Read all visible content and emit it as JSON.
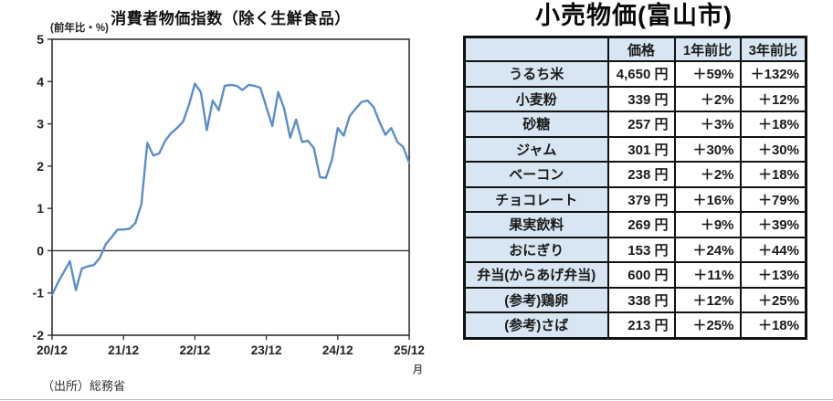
{
  "chart": {
    "title": "消費者物価指数（除く生鮮食品）",
    "unit_label": "(前年比・%)",
    "x_axis_suffix": "月",
    "source": "（出所）総務省",
    "line_color": "#5b8fc9",
    "axis_color": "#333333"
  },
  "chart_data": [
    {
      "type": "line",
      "title": "消費者物価指数（除く生鮮食品）",
      "ylabel": "(前年比・%)",
      "xlabel": "月",
      "ylim": [
        -2,
        5
      ],
      "yticks": [
        5,
        4,
        3,
        2,
        1,
        0,
        -1,
        -2
      ],
      "x_tick_labels": [
        "20/12",
        "21/12",
        "22/12",
        "23/12",
        "24/12",
        "25/12"
      ],
      "x_tick_positions_months": [
        0,
        12,
        24,
        36,
        48,
        60
      ],
      "grid": false,
      "zero_line": true,
      "legend": "none",
      "series": [
        {
          "name": "消費者物価指数（除く生鮮食品）前年比",
          "x_start_month": "20/12",
          "x_step_months": 1,
          "values": [
            -1.05,
            -0.75,
            -0.5,
            -0.25,
            -0.93,
            -0.42,
            -0.37,
            -0.34,
            -0.18,
            0.15,
            0.32,
            0.5,
            0.5,
            0.52,
            0.65,
            1.1,
            2.55,
            2.25,
            2.3,
            2.6,
            2.78,
            2.9,
            3.05,
            3.45,
            3.95,
            3.75,
            2.85,
            3.55,
            3.32,
            3.9,
            3.92,
            3.9,
            3.8,
            3.92,
            3.9,
            3.85,
            3.4,
            2.95,
            3.75,
            3.36,
            2.67,
            3.1,
            2.57,
            2.6,
            2.42,
            1.74,
            1.72,
            2.14,
            2.9,
            2.72,
            3.18,
            3.36,
            3.52,
            3.55,
            3.4,
            3.05,
            2.74,
            2.9,
            2.57,
            2.45,
            2.08
          ]
        }
      ]
    },
    {
      "type": "table",
      "title": "小売物価(富山市)",
      "columns": [
        "",
        "価格",
        "1年前比",
        "3年前比"
      ],
      "rows": [
        [
          "うるち米",
          "4,650 円",
          "＋59%",
          "＋132%"
        ],
        [
          "小麦粉",
          "339 円",
          "＋2%",
          "＋12%"
        ],
        [
          "砂糖",
          "257 円",
          "＋3%",
          "＋18%"
        ],
        [
          "ジャム",
          "301 円",
          "＋30%",
          "＋30%"
        ],
        [
          "ベーコン",
          "238 円",
          "＋2%",
          "＋18%"
        ],
        [
          "チョコレート",
          "379 円",
          "＋16%",
          "＋79%"
        ],
        [
          "果実飲料",
          "269 円",
          "＋9%",
          "＋39%"
        ],
        [
          "おにぎり",
          "153 円",
          "＋24%",
          "＋44%"
        ],
        [
          "弁当(からあげ弁当)",
          "600 円",
          "＋11%",
          "＋13%"
        ],
        [
          "(参考)鶏卵",
          "338 円",
          "＋12%",
          "＋25%"
        ],
        [
          "(参考)さば",
          "213 円",
          "＋25%",
          "＋18%"
        ]
      ]
    }
  ],
  "table": {
    "title": "小売物価(富山市)",
    "header_bg": "#d7e6f2",
    "border_color": "#111111"
  }
}
